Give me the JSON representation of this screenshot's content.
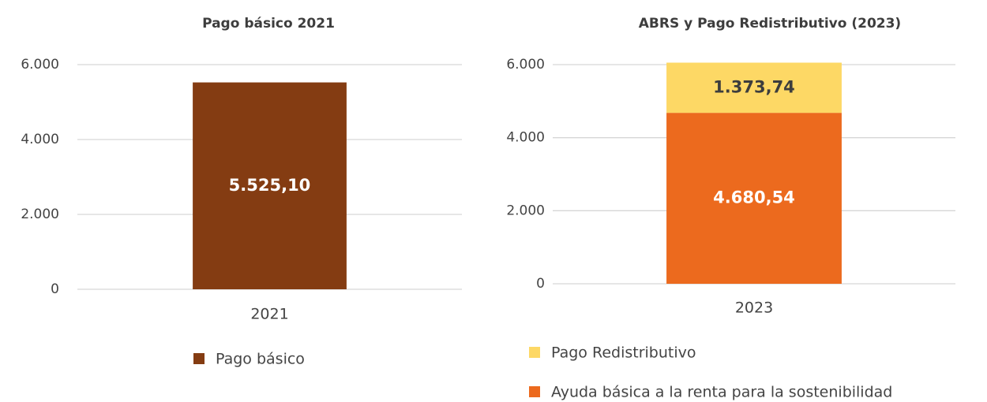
{
  "chart_data": [
    {
      "type": "bar",
      "title": "Pago básico 2021",
      "categories": [
        "2021"
      ],
      "series": [
        {
          "name": "Pago básico",
          "color": "#843C12",
          "values": [
            5525.1
          ],
          "value_labels": [
            "5.525,10"
          ]
        }
      ],
      "ylim": [
        0,
        6000
      ],
      "yticks": [
        0,
        {
          "value": 2000,
          "label": "2.000"
        },
        {
          "value": 4000,
          "label": "4.000"
        },
        {
          "value": 6000,
          "label": "6.000"
        }
      ],
      "grid": true
    },
    {
      "type": "stacked_bar",
      "title": "ABRS y Pago Redistributivo (2023)",
      "categories": [
        "2023"
      ],
      "series": [
        {
          "name": "Ayuda básica a la renta para la sostenibilidad",
          "color": "#EC6A1E",
          "values": [
            4680.54
          ],
          "value_labels": [
            "4.680,54"
          ]
        },
        {
          "name": "Pago Redistributivo",
          "color": "#FDD865",
          "values": [
            1373.74
          ],
          "value_labels": [
            "1.373,74"
          ]
        }
      ],
      "ylim": [
        0,
        6000
      ],
      "yticks": [
        0,
        {
          "value": 2000,
          "label": "2.000"
        },
        {
          "value": 4000,
          "label": "4.000"
        },
        {
          "value": 6000,
          "label": "6.000"
        }
      ],
      "grid": true
    }
  ]
}
